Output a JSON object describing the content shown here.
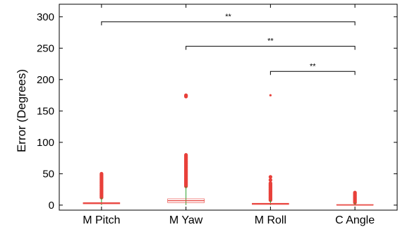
{
  "chart_data": {
    "type": "box",
    "title": "",
    "xlabel": "",
    "ylabel": "Error (Degrees)",
    "ylim": [
      -8,
      320
    ],
    "yticks": [
      0,
      50,
      100,
      150,
      200,
      250,
      300
    ],
    "categories": [
      "M Pitch",
      "M Yaw",
      "M Roll",
      "C Angle"
    ],
    "boxes": [
      {
        "category": "M Pitch",
        "median": 3,
        "q1": 2,
        "q3": 4,
        "whisker_low": 0,
        "whisker_high": 12,
        "outlier_range": [
          12,
          50
        ],
        "outliers_extra": []
      },
      {
        "category": "M Yaw",
        "median": 7,
        "q1": 4,
        "q3": 10,
        "whisker_low": 0,
        "whisker_high": 30,
        "outlier_range": [
          30,
          80
        ],
        "outliers_extra": [
          173,
          174,
          175
        ]
      },
      {
        "category": "M Roll",
        "median": 2,
        "q1": 1,
        "q3": 3,
        "whisker_low": 0,
        "whisker_high": 8,
        "outlier_range": [
          8,
          35
        ],
        "outliers_extra": [
          40,
          45,
          175
        ]
      },
      {
        "category": "C Angle",
        "median": 0,
        "q1": 0,
        "q3": 1,
        "whisker_low": 0,
        "whisker_high": 4,
        "outlier_range": [
          4,
          20
        ],
        "outliers_extra": []
      }
    ],
    "significance": [
      {
        "from": "M Pitch",
        "to": "C Angle",
        "y": 292,
        "label": "**"
      },
      {
        "from": "M Yaw",
        "to": "C Angle",
        "y": 253,
        "label": "**"
      },
      {
        "from": "M Roll",
        "to": "C Angle",
        "y": 213,
        "label": "**"
      }
    ],
    "colors": {
      "median": "#e8403a",
      "outlier": "#e8403a",
      "whisker": "#2ca02c",
      "axis": "#000000",
      "bracket": "#000000"
    },
    "grid": false,
    "legend": "none"
  }
}
